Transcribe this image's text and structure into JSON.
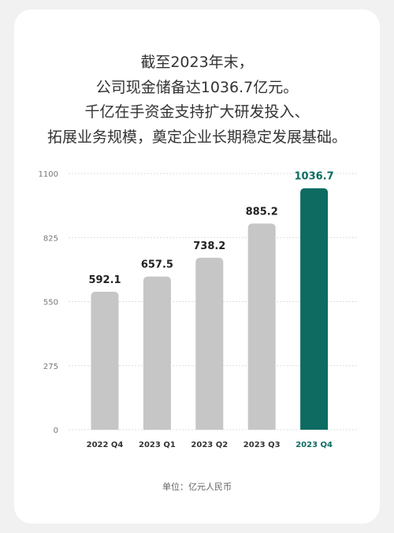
{
  "headline": {
    "line1": "截至2023年末，",
    "line2": "公司现金储备达1036.7亿元。",
    "line3": "千亿在手资金支持扩大研发投入、",
    "line4": "拓展业务规模，奠定企业长期稳定发展基础。"
  },
  "chart_data": {
    "type": "bar",
    "categories": [
      "2022 Q4",
      "2023 Q1",
      "2023 Q2",
      "2023 Q3",
      "2023 Q4"
    ],
    "values": [
      592.1,
      657.5,
      738.2,
      885.2,
      1036.7
    ],
    "value_labels": [
      "592.1",
      "657.5",
      "738.2",
      "885.2",
      "1036.7"
    ],
    "ylim": [
      0,
      1100
    ],
    "yticks": [
      0,
      275,
      550,
      825,
      1100
    ],
    "grid": true,
    "highlight_index": 4,
    "unit_note": "单位：亿元人民币"
  },
  "colors": {
    "bar": "#c6c6c6",
    "highlight_bar": "#0d6b62",
    "highlight_text": "#0d6b62",
    "grid": "#dcdcdc",
    "value_text": "#222222",
    "tick_text": "#777777"
  }
}
